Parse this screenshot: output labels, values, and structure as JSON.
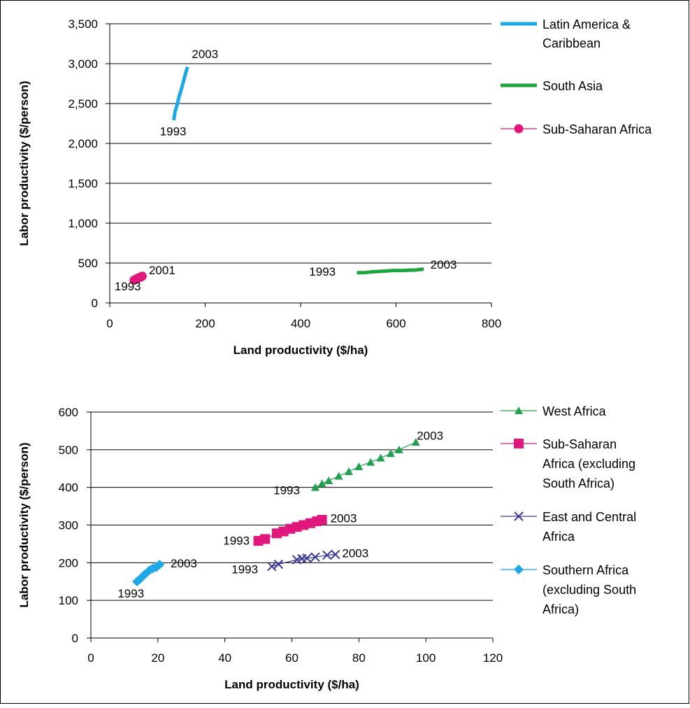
{
  "colors": {
    "latin_america": "#1EA8E6",
    "south_asia": "#1FA53F",
    "sub_saharan": "#E0187D",
    "west_africa": "#22A050",
    "ssa_ex_sa": "#E0187D",
    "east_central": "#3D3C94",
    "southern_africa": "#1EA8E6"
  },
  "chart_data": [
    {
      "type": "line",
      "xlabel": "Land productivity ($/ha)",
      "ylabel": "Labor productivity ($/person)",
      "xlim": [
        0,
        800
      ],
      "ylim": [
        0,
        3500
      ],
      "x_ticks": [
        "0",
        "200",
        "400",
        "600",
        "800"
      ],
      "y_ticks": [
        "0",
        "500",
        "1,000",
        "1,500",
        "2,000",
        "2,500",
        "3,000",
        "3,500"
      ],
      "grid": "horizontal",
      "legend_position": "right",
      "series": [
        {
          "name": "Latin America & Caribbean",
          "legend_lines": [
            "Latin America &",
            "Caribbean"
          ],
          "color_key": "latin_america",
          "marker": "none",
          "points": [
            [
              134,
              2290
            ],
            [
              137,
              2400
            ],
            [
              141,
              2480
            ],
            [
              145,
              2580
            ],
            [
              150,
              2680
            ],
            [
              155,
              2790
            ],
            [
              160,
              2900
            ],
            [
              163,
              2960
            ]
          ]
        },
        {
          "name": "South Asia",
          "legend_lines": [
            "South Asia"
          ],
          "color_key": "south_asia",
          "marker": "none",
          "points": [
            [
              518,
              380
            ],
            [
              535,
              380
            ],
            [
              550,
              390
            ],
            [
              565,
              395
            ],
            [
              580,
              400
            ],
            [
              595,
              408
            ],
            [
              610,
              405
            ],
            [
              625,
              410
            ],
            [
              640,
              412
            ],
            [
              658,
              425
            ]
          ]
        },
        {
          "name": "Sub-Saharan Africa",
          "legend_lines": [
            "Sub-Saharan Africa"
          ],
          "color_key": "sub_saharan",
          "marker": "circle",
          "points": [
            [
              51,
              285
            ],
            [
              54,
              295
            ],
            [
              56,
              300
            ],
            [
              58,
              308
            ],
            [
              60,
              312
            ],
            [
              62,
              318
            ],
            [
              64,
              322
            ],
            [
              66,
              328
            ],
            [
              68,
              335
            ]
          ]
        }
      ],
      "annotations": [
        {
          "text": "2003",
          "x": 172,
          "y": 3070
        },
        {
          "text": "1993",
          "x": 105,
          "y": 2100
        },
        {
          "text": "2001",
          "x": 82,
          "y": 360
        },
        {
          "text": "1993",
          "x": 10,
          "y": 160
        },
        {
          "text": "1993",
          "x": 418,
          "y": 340
        },
        {
          "text": "2003",
          "x": 672,
          "y": 430
        }
      ]
    },
    {
      "type": "line",
      "xlabel": "Land productivity ($/ha)",
      "ylabel": "Labor productivity ($/person)",
      "xlim": [
        0,
        120
      ],
      "ylim": [
        0,
        600
      ],
      "x_ticks": [
        "0",
        "20",
        "40",
        "60",
        "80",
        "100",
        "120"
      ],
      "y_ticks": [
        "0",
        "100",
        "200",
        "300",
        "400",
        "500",
        "600"
      ],
      "grid": "horizontal",
      "legend_position": "right",
      "series": [
        {
          "name": "West Africa",
          "legend_lines": [
            "West Africa"
          ],
          "color_key": "west_africa",
          "marker": "triangle",
          "points": [
            [
              67,
              400
            ],
            [
              69,
              410
            ],
            [
              71,
              418
            ],
            [
              74,
              430
            ],
            [
              77,
              442
            ],
            [
              80,
              455
            ],
            [
              83.5,
              467
            ],
            [
              86.5,
              478
            ],
            [
              89.5,
              490
            ],
            [
              92,
              500
            ],
            [
              97,
              520
            ]
          ]
        },
        {
          "name": "Sub-Saharan Africa (excluding South Africa)",
          "legend_lines": [
            "Sub-Saharan",
            "Africa (excluding",
            "South Africa)"
          ],
          "color_key": "ssa_ex_sa",
          "marker": "square",
          "points": [
            [
              50,
              258
            ],
            [
              52,
              263
            ],
            [
              55.5,
              278
            ],
            [
              57.5,
              283
            ],
            [
              59.5,
              290
            ],
            [
              61.5,
              295
            ],
            [
              63.5,
              300
            ],
            [
              65.5,
              305
            ],
            [
              67.5,
              310
            ],
            [
              69,
              314
            ]
          ]
        },
        {
          "name": "East and Central Africa",
          "legend_lines": [
            "East and Central",
            "Africa"
          ],
          "color_key": "east_central",
          "marker": "cross",
          "points": [
            [
              54,
              190
            ],
            [
              56,
              196
            ],
            [
              61.5,
              208
            ],
            [
              63,
              211
            ],
            [
              64.5,
              212
            ],
            [
              67,
              215
            ],
            [
              70.5,
              220
            ],
            [
              73,
              222
            ]
          ]
        },
        {
          "name": "Southern Africa (excluding South Africa)",
          "legend_lines": [
            "Southern Africa",
            "(excluding South",
            "Africa)"
          ],
          "color_key": "southern_africa",
          "marker": "diamond",
          "points": [
            [
              13.8,
              150
            ],
            [
              14.8,
              158
            ],
            [
              16,
              168
            ],
            [
              17.5,
              180
            ],
            [
              18.5,
              185
            ],
            [
              19.5,
              188
            ],
            [
              20.5,
              195
            ]
          ]
        }
      ],
      "annotations": [
        {
          "text": "2003",
          "x": 97.3,
          "y": 527
        },
        {
          "text": "1993",
          "x": 54.5,
          "y": 382
        },
        {
          "text": "2003",
          "x": 71.5,
          "y": 307
        },
        {
          "text": "1993",
          "x": 39.5,
          "y": 248
        },
        {
          "text": "2003",
          "x": 75,
          "y": 215
        },
        {
          "text": "1993",
          "x": 42,
          "y": 172
        },
        {
          "text": "2003",
          "x": 23.8,
          "y": 188
        },
        {
          "text": "1993",
          "x": 8,
          "y": 108
        }
      ]
    }
  ]
}
